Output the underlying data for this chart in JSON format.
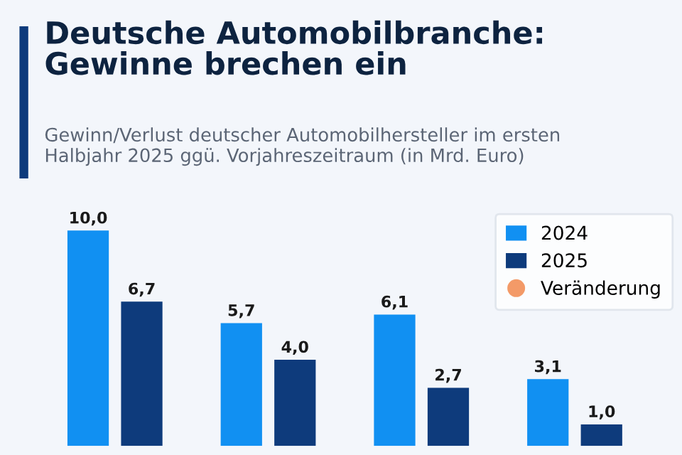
{
  "chart_data": {
    "type": "bar",
    "title": "Deutsche Automobilbranche:\nGewinne brechen ein",
    "subtitle": "Gewinn/Verlust deutscher Automobilhersteller im ersten\nHalbjahr 2025 ggü. Vorjahreszeitraum (in Mrd. Euro)",
    "categories": [
      null,
      null,
      null,
      null
    ],
    "series": [
      {
        "name": "2024",
        "color": "#1190f2",
        "values": [
          10.0,
          5.7,
          6.1,
          3.1
        ],
        "value_labels": [
          "10,0",
          "5,7",
          "6,1",
          "3,1"
        ]
      },
      {
        "name": "2025",
        "color": "#0e3b7c",
        "values": [
          6.7,
          4.0,
          2.7,
          1.0
        ],
        "value_labels": [
          "6,7",
          "4,0",
          "2,7",
          "1,0"
        ]
      }
    ],
    "annotations": [
      "Veränderung"
    ],
    "grid": false,
    "legend": "top right"
  }
}
